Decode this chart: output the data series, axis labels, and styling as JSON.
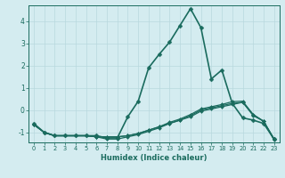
{
  "xlabel": "Humidex (Indice chaleur)",
  "xlim": [
    -0.5,
    23.5
  ],
  "ylim": [
    -1.45,
    4.7
  ],
  "yticks": [
    -1,
    0,
    1,
    2,
    3,
    4
  ],
  "xticks": [
    0,
    1,
    2,
    3,
    4,
    5,
    6,
    7,
    8,
    9,
    10,
    11,
    12,
    13,
    14,
    15,
    16,
    17,
    18,
    19,
    20,
    21,
    22,
    23
  ],
  "background_color": "#d4ecf0",
  "line_color": "#1a6b5e",
  "grid_color": "#b8d8de",
  "series": [
    {
      "x": [
        0,
        1,
        2,
        3,
        4,
        5,
        6,
        7,
        8,
        9,
        10,
        11,
        12,
        13,
        14,
        15,
        16,
        17,
        18,
        19,
        20,
        21,
        22,
        23
      ],
      "y": [
        -0.6,
        -1.0,
        -1.15,
        -1.15,
        -1.15,
        -1.15,
        -1.15,
        -1.25,
        -1.25,
        -0.3,
        0.4,
        1.9,
        2.5,
        3.05,
        3.8,
        4.55,
        3.7,
        1.4,
        1.8,
        0.3,
        -0.35,
        -0.45,
        -0.6,
        -1.3
      ],
      "markersize": 2.5,
      "linewidth": 1.2
    },
    {
      "x": [
        0,
        1,
        2,
        3,
        4,
        5,
        6,
        7,
        8,
        9,
        10,
        11,
        12,
        13,
        14,
        15,
        16,
        17,
        18,
        19,
        20,
        21,
        22,
        23
      ],
      "y": [
        -0.65,
        -1.0,
        -1.15,
        -1.15,
        -1.15,
        -1.15,
        -1.2,
        -1.2,
        -1.2,
        -1.15,
        -1.05,
        -0.9,
        -0.75,
        -0.6,
        -0.45,
        -0.25,
        0.0,
        0.1,
        0.2,
        0.3,
        0.35,
        -0.25,
        -0.5,
        -1.3
      ],
      "markersize": 2.0,
      "linewidth": 0.9
    },
    {
      "x": [
        0,
        1,
        2,
        3,
        4,
        5,
        6,
        7,
        8,
        9,
        10,
        11,
        12,
        13,
        14,
        15,
        16,
        17,
        18,
        19,
        20,
        21,
        22,
        23
      ],
      "y": [
        -0.65,
        -1.0,
        -1.15,
        -1.15,
        -1.15,
        -1.15,
        -1.2,
        -1.2,
        -1.2,
        -1.15,
        -1.05,
        -0.9,
        -0.75,
        -0.55,
        -0.4,
        -0.2,
        0.05,
        0.15,
        0.25,
        0.38,
        0.4,
        -0.2,
        -0.5,
        -1.3
      ],
      "markersize": 2.0,
      "linewidth": 0.9
    },
    {
      "x": [
        0,
        1,
        2,
        3,
        4,
        5,
        6,
        7,
        8,
        9,
        10,
        11,
        12,
        13,
        14,
        15,
        16,
        17,
        18,
        19,
        20,
        21,
        22,
        23
      ],
      "y": [
        -0.65,
        -1.0,
        -1.15,
        -1.15,
        -1.15,
        -1.15,
        -1.2,
        -1.3,
        -1.3,
        -1.2,
        -1.1,
        -0.95,
        -0.8,
        -0.6,
        -0.45,
        -0.3,
        -0.05,
        0.05,
        0.15,
        0.25,
        0.35,
        -0.2,
        -0.5,
        -1.35
      ],
      "markersize": 2.0,
      "linewidth": 0.9
    }
  ]
}
